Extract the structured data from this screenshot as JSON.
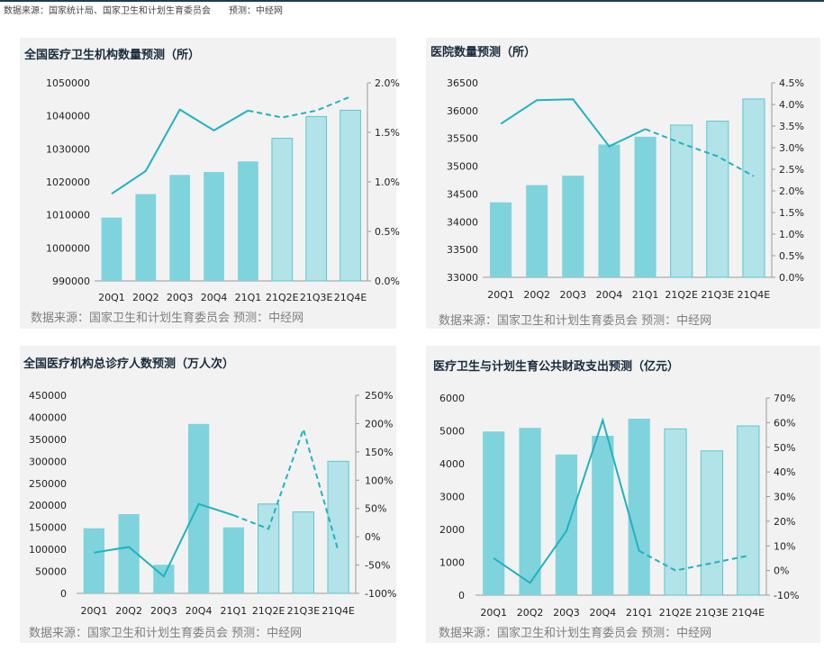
{
  "header_note": "数据来源：国家统计局、国家卫生和计划生育委员会　　预测：中经网",
  "colors": {
    "bar_actual": "#7fd3dc",
    "bar_forecast": "#b1e3e8",
    "bar_border": "#5fc5cf",
    "line": "#20b2c0",
    "axis": "#9a9a9a"
  },
  "charts": [
    {
      "type": "bar+line",
      "title": "全国医疗卫生机构数量预测（所）",
      "source": "数据来源：国家卫生和计划生育委员会 预测：中经网",
      "categories": [
        "20Q1",
        "20Q2",
        "20Q3",
        "20Q4",
        "21Q1",
        "21Q2E",
        "21Q3E",
        "21Q4E"
      ],
      "left_ticks": [
        "1050000",
        "1040000",
        "1030000",
        "1020000",
        "1010000",
        "1000000",
        "990000"
      ],
      "right_ticks": [
        "2.0%",
        "1.5%",
        "1.0%",
        "0.5%",
        "0.0%"
      ],
      "ylim": [
        990000,
        1050000
      ],
      "y2lim": [
        0,
        2.0
      ],
      "forecast_from": 5,
      "solid_line_to": 4,
      "bars": [
        1009200,
        1016300,
        1022100,
        1023000,
        1026200,
        1033200,
        1039800,
        1041700
      ],
      "line": [
        0.88,
        1.11,
        1.73,
        1.52,
        1.72,
        1.65,
        1.72,
        1.86
      ]
    },
    {
      "type": "bar+line",
      "title": "医院数量预测（所）",
      "source": "数据来源：国家卫生和计划生育委员会 预测：中经网",
      "categories": [
        "20Q1",
        "20Q2",
        "20Q3",
        "20Q4",
        "21Q1",
        "21Q2E",
        "21Q3E",
        "21Q4E"
      ],
      "left_ticks": [
        "36500",
        "36000",
        "35500",
        "35000",
        "34500",
        "34000",
        "33500",
        "33000"
      ],
      "right_ticks": [
        "4.5%",
        "4.0%",
        "3.5%",
        "3.0%",
        "2.5%",
        "2.0%",
        "1.5%",
        "1.0%",
        "0.5%",
        "0.0%"
      ],
      "ylim": [
        33000,
        36500
      ],
      "y2lim": [
        0,
        4.5
      ],
      "forecast_from": 5,
      "solid_line_to": 4,
      "bars": [
        34350,
        34660,
        34830,
        35390,
        35530,
        35740,
        35810,
        36210
      ],
      "line": [
        3.55,
        4.1,
        4.12,
        3.03,
        3.43,
        3.1,
        2.8,
        2.34
      ]
    },
    {
      "type": "bar+line",
      "title": "全国医疗机构总诊疗人数预测（万人次）",
      "source": "数据来源：国家卫生和计划生育委员会 预测：中经网",
      "categories": [
        "20Q1",
        "20Q2",
        "20Q3",
        "20Q4",
        "21Q1",
        "21Q2E",
        "21Q3E",
        "21Q4E"
      ],
      "left_ticks": [
        "450000",
        "400000",
        "350000",
        "300000",
        "250000",
        "200000",
        "150000",
        "100000",
        "50000",
        "0"
      ],
      "right_ticks": [
        "250%",
        "200%",
        "150%",
        "100%",
        "50%",
        "0%",
        "-50%",
        "-100%"
      ],
      "ylim": [
        0,
        450000
      ],
      "y2lim": [
        -100,
        250
      ],
      "forecast_from": 5,
      "solid_line_to": 4,
      "bars": [
        148000,
        180000,
        65000,
        385000,
        150000,
        203000,
        185000,
        300000
      ],
      "line": [
        -28,
        -18,
        -70,
        58,
        38,
        14,
        190,
        -25
      ]
    },
    {
      "type": "bar+line",
      "title": "医疗卫生与计划生育公共财政支出预测（亿元）",
      "source": "数据来源：国家卫生和计划生育委员会 预测：中经网",
      "categories": [
        "20Q1",
        "20Q2",
        "20Q3",
        "20Q4",
        "21Q1",
        "21Q2E",
        "21Q3E",
        "21Q4E"
      ],
      "left_ticks": [
        "6000",
        "5000",
        "4000",
        "3000",
        "2000",
        "1000",
        "0"
      ],
      "right_ticks": [
        "70%",
        "60%",
        "50%",
        "40%",
        "30%",
        "20%",
        "10%",
        "0%",
        "-10%"
      ],
      "ylim": [
        0,
        6000
      ],
      "y2lim": [
        -10,
        70
      ],
      "forecast_from": 5,
      "solid_line_to": 4,
      "bars": [
        4980,
        5090,
        4280,
        4850,
        5370,
        5060,
        4390,
        5150
      ],
      "line": [
        5,
        -5,
        16,
        61,
        8,
        0,
        3,
        6
      ]
    }
  ]
}
